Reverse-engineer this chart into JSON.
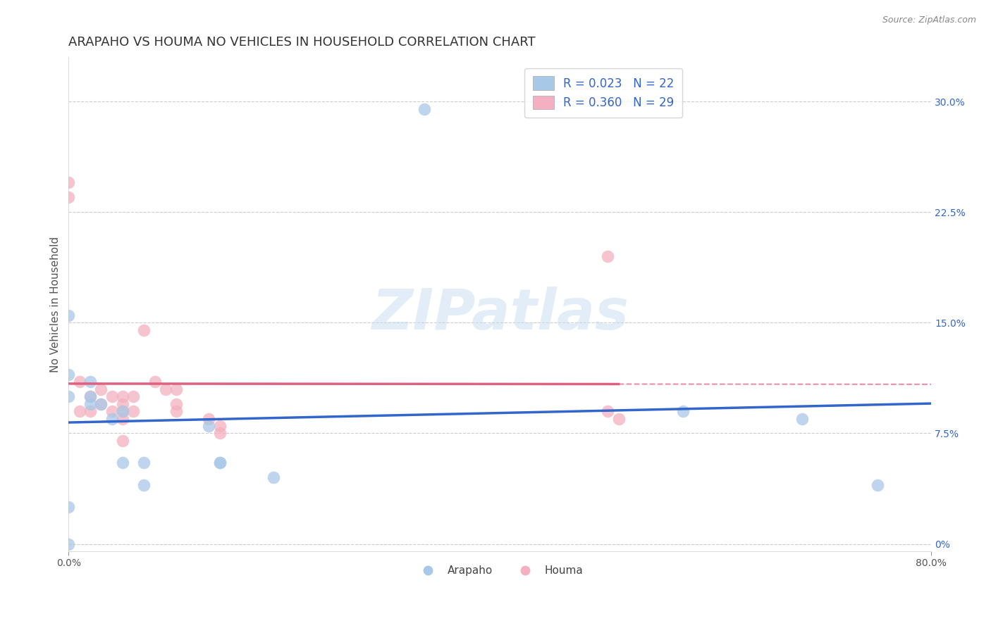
{
  "title": "ARAPAHO VS HOUMA NO VEHICLES IN HOUSEHOLD CORRELATION CHART",
  "source_text": "Source: ZipAtlas.com",
  "ylabel": "No Vehicles in Household",
  "xlim": [
    0.0,
    0.8
  ],
  "ylim": [
    -0.005,
    0.33
  ],
  "ytick_values": [
    0.0,
    0.075,
    0.15,
    0.225,
    0.3
  ],
  "ytick_labels": [
    "0%",
    "7.5%",
    "15.0%",
    "22.5%",
    "30.0%"
  ],
  "xtick_values": [
    0.0,
    0.8
  ],
  "xtick_labels": [
    "0.0%",
    "80.0%"
  ],
  "arapaho_color": "#a8c8e8",
  "houma_color": "#f4b0c0",
  "arapaho_line_color": "#3366cc",
  "houma_line_color": "#e06080",
  "background_color": "#ffffff",
  "grid_color": "#cccccc",
  "legend_R_arapaho": "R = 0.023",
  "legend_N_arapaho": "N = 22",
  "legend_R_houma": "R = 0.360",
  "legend_N_houma": "N = 29",
  "legend_color": "#3366cc",
  "watermark": "ZIPatlas",
  "arapaho_x": [
    0.33,
    0.0,
    0.0,
    0.0,
    0.02,
    0.02,
    0.02,
    0.03,
    0.04,
    0.05,
    0.05,
    0.07,
    0.07,
    0.0,
    0.13,
    0.14,
    0.14,
    0.19,
    0.57,
    0.68,
    0.75,
    0.0
  ],
  "arapaho_y": [
    0.295,
    0.155,
    0.115,
    0.1,
    0.11,
    0.1,
    0.095,
    0.095,
    0.085,
    0.09,
    0.055,
    0.055,
    0.04,
    0.025,
    0.08,
    0.055,
    0.055,
    0.045,
    0.09,
    0.085,
    0.04,
    0.0
  ],
  "houma_x": [
    0.0,
    0.0,
    0.01,
    0.01,
    0.02,
    0.02,
    0.03,
    0.03,
    0.04,
    0.04,
    0.05,
    0.05,
    0.05,
    0.05,
    0.05,
    0.06,
    0.06,
    0.07,
    0.08,
    0.09,
    0.1,
    0.1,
    0.1,
    0.13,
    0.14,
    0.14,
    0.5,
    0.5,
    0.51
  ],
  "houma_y": [
    0.245,
    0.235,
    0.11,
    0.09,
    0.1,
    0.09,
    0.105,
    0.095,
    0.1,
    0.09,
    0.1,
    0.095,
    0.09,
    0.085,
    0.07,
    0.1,
    0.09,
    0.145,
    0.11,
    0.105,
    0.105,
    0.095,
    0.09,
    0.085,
    0.08,
    0.075,
    0.195,
    0.09,
    0.085
  ],
  "title_fontsize": 13,
  "axis_label_fontsize": 11,
  "tick_fontsize": 10,
  "legend_fontsize": 12
}
